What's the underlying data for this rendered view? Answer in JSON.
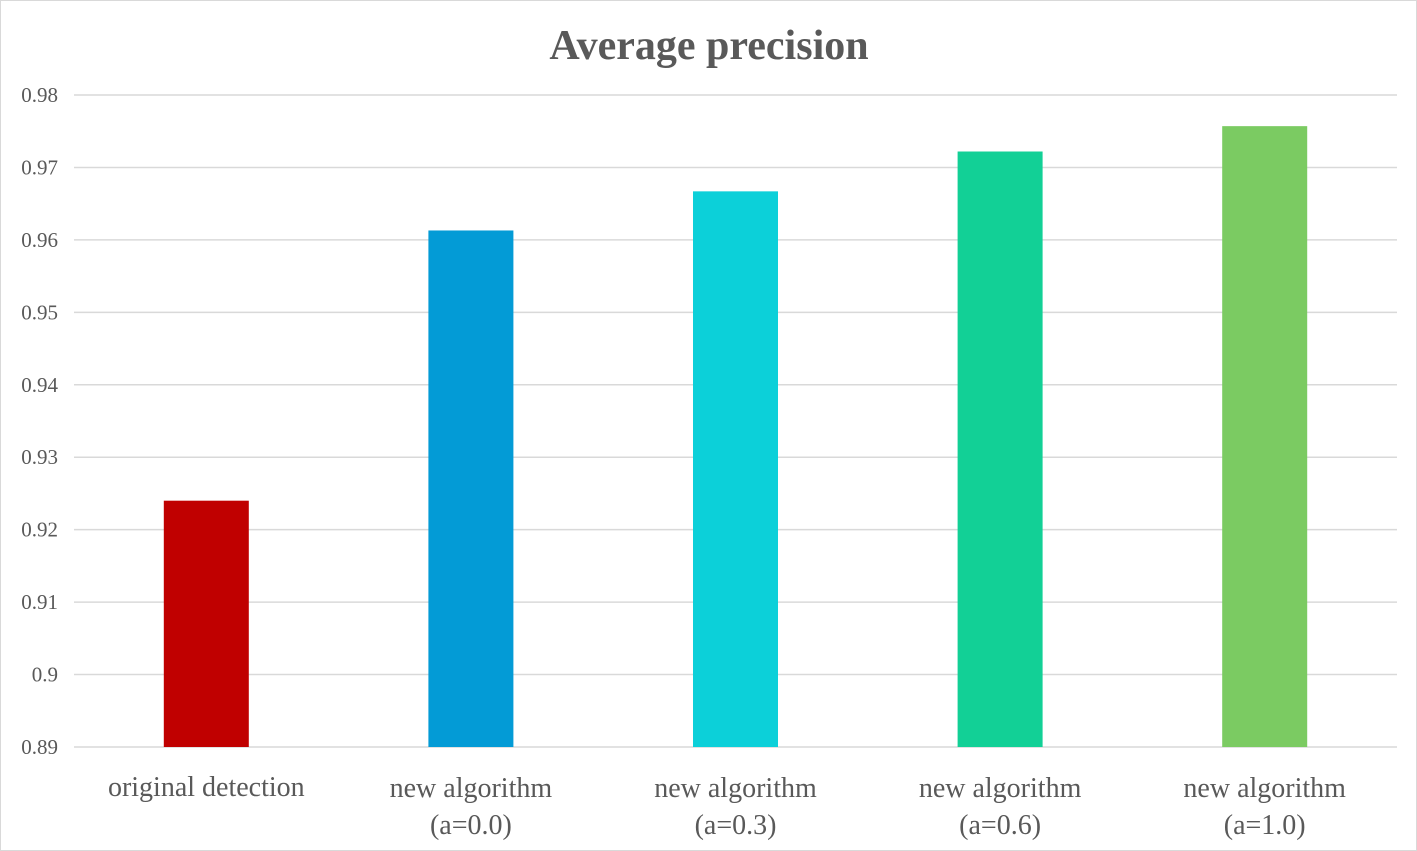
{
  "chart_data": {
    "type": "bar",
    "title": "Average precision",
    "xlabel": "",
    "ylabel": "",
    "ylim": [
      0.89,
      0.98
    ],
    "yticks": [
      "0.89",
      "0.9",
      "0.91",
      "0.92",
      "0.93",
      "0.94",
      "0.95",
      "0.96",
      "0.97",
      "0.98"
    ],
    "ytick_values": [
      0.89,
      0.9,
      0.91,
      0.92,
      0.93,
      0.94,
      0.95,
      0.96,
      0.97,
      0.98
    ],
    "grid": true,
    "legend": "none",
    "categories": [
      [
        "original detection"
      ],
      [
        "new algorithm",
        "(a=0.0)"
      ],
      [
        "new algorithm",
        "(a=0.3)"
      ],
      [
        "new algorithm",
        "(a=0.6)"
      ],
      [
        "new algorithm",
        "(a=1.0)"
      ]
    ],
    "values": [
      0.924,
      0.9613,
      0.9667,
      0.9722,
      0.9757
    ],
    "colors": [
      "#c00000",
      "#039bd6",
      "#0cd0d9",
      "#12d096",
      "#7bcb62"
    ]
  }
}
